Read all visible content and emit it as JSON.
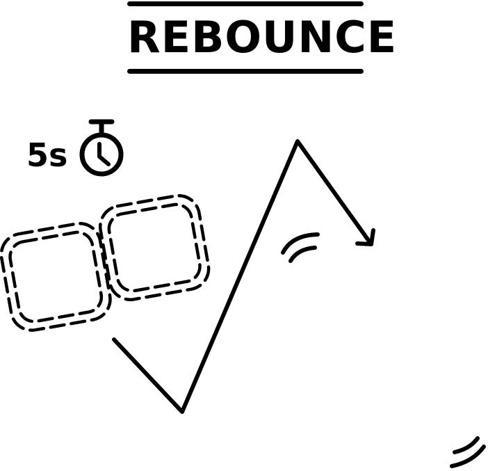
{
  "title": "REBOUNCE",
  "timer": {
    "value": "5s",
    "icon": "stopwatch-icon"
  },
  "icons": {
    "dashed_squares": "dashed-double-square-icon",
    "path": "zigzag-arrow-icon",
    "motion_mark": "motion-arc-icon",
    "corner_mark": "motion-arc-icon"
  },
  "colors": {
    "ink": "#000000",
    "background": "#ffffff"
  }
}
